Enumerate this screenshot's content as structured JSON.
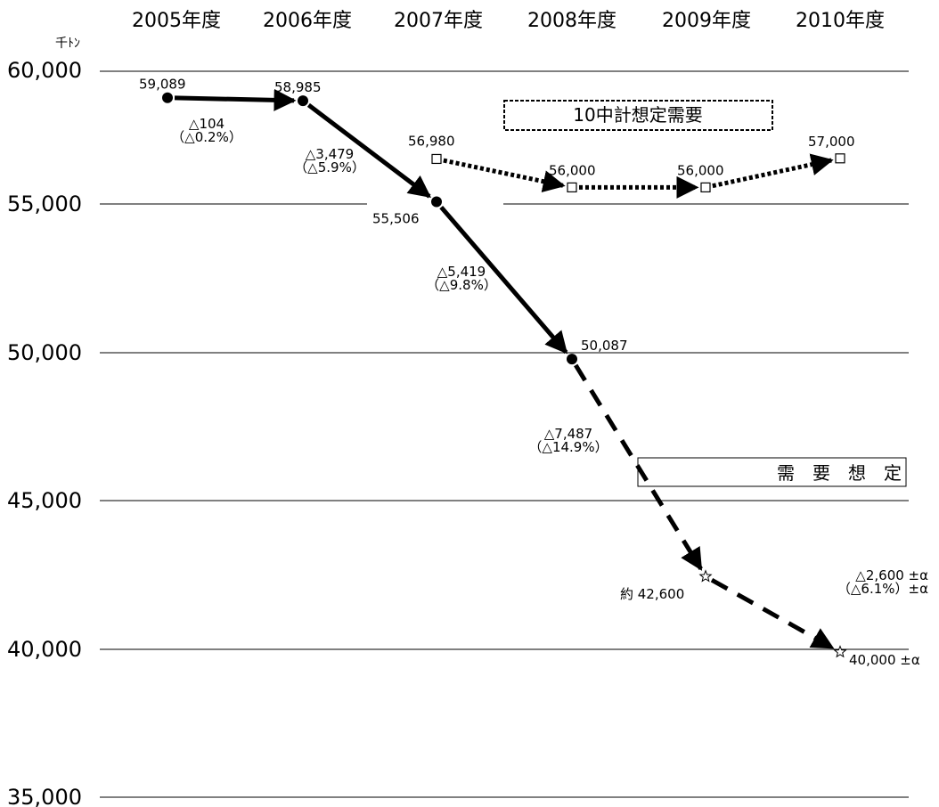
{
  "chart_data": {
    "type": "line",
    "unit": "千ﾄﾝ",
    "categories": [
      "2005年度",
      "2006年度",
      "2007年度",
      "2008年度",
      "2009年度",
      "2010年度"
    ],
    "y_ticks": [
      "60,000",
      "55,000",
      "50,000",
      "45,000",
      "40,000",
      "35,000"
    ],
    "ylim": [
      35000,
      60000
    ],
    "grid": true,
    "series": [
      {
        "style": "solid",
        "marker": "filled-circle",
        "values": [
          59089,
          58985,
          55506,
          50087,
          null,
          null
        ],
        "point_labels": [
          "59,089",
          "58,985",
          "55,506",
          "50,087",
          "",
          ""
        ]
      },
      {
        "name": "10中計想定需要",
        "style": "dotted",
        "marker": "hollow-square",
        "values": [
          null,
          null,
          56980,
          56000,
          56000,
          57000
        ],
        "point_labels": [
          "",
          "",
          "56,980",
          "56,000",
          "56,000",
          "57,000"
        ]
      },
      {
        "name": "需　要　想　定",
        "style": "dashed",
        "marker": "star",
        "values": [
          null,
          null,
          null,
          50087,
          42600,
          40000
        ],
        "point_labels": [
          "",
          "",
          "",
          "",
          "約 42,600",
          "40,000 ±α"
        ]
      }
    ],
    "annotations": [
      {
        "change": "△104",
        "percent": "（△0.2%）"
      },
      {
        "change": "△3,479",
        "percent": "（△5.9%）"
      },
      {
        "change": "△5,419",
        "percent": "（△9.8%）"
      },
      {
        "change": "△7,487",
        "percent": "（△14.9%）"
      },
      {
        "change": "△2,600 ±α",
        "percent": "（△6.1%）±α"
      }
    ]
  }
}
